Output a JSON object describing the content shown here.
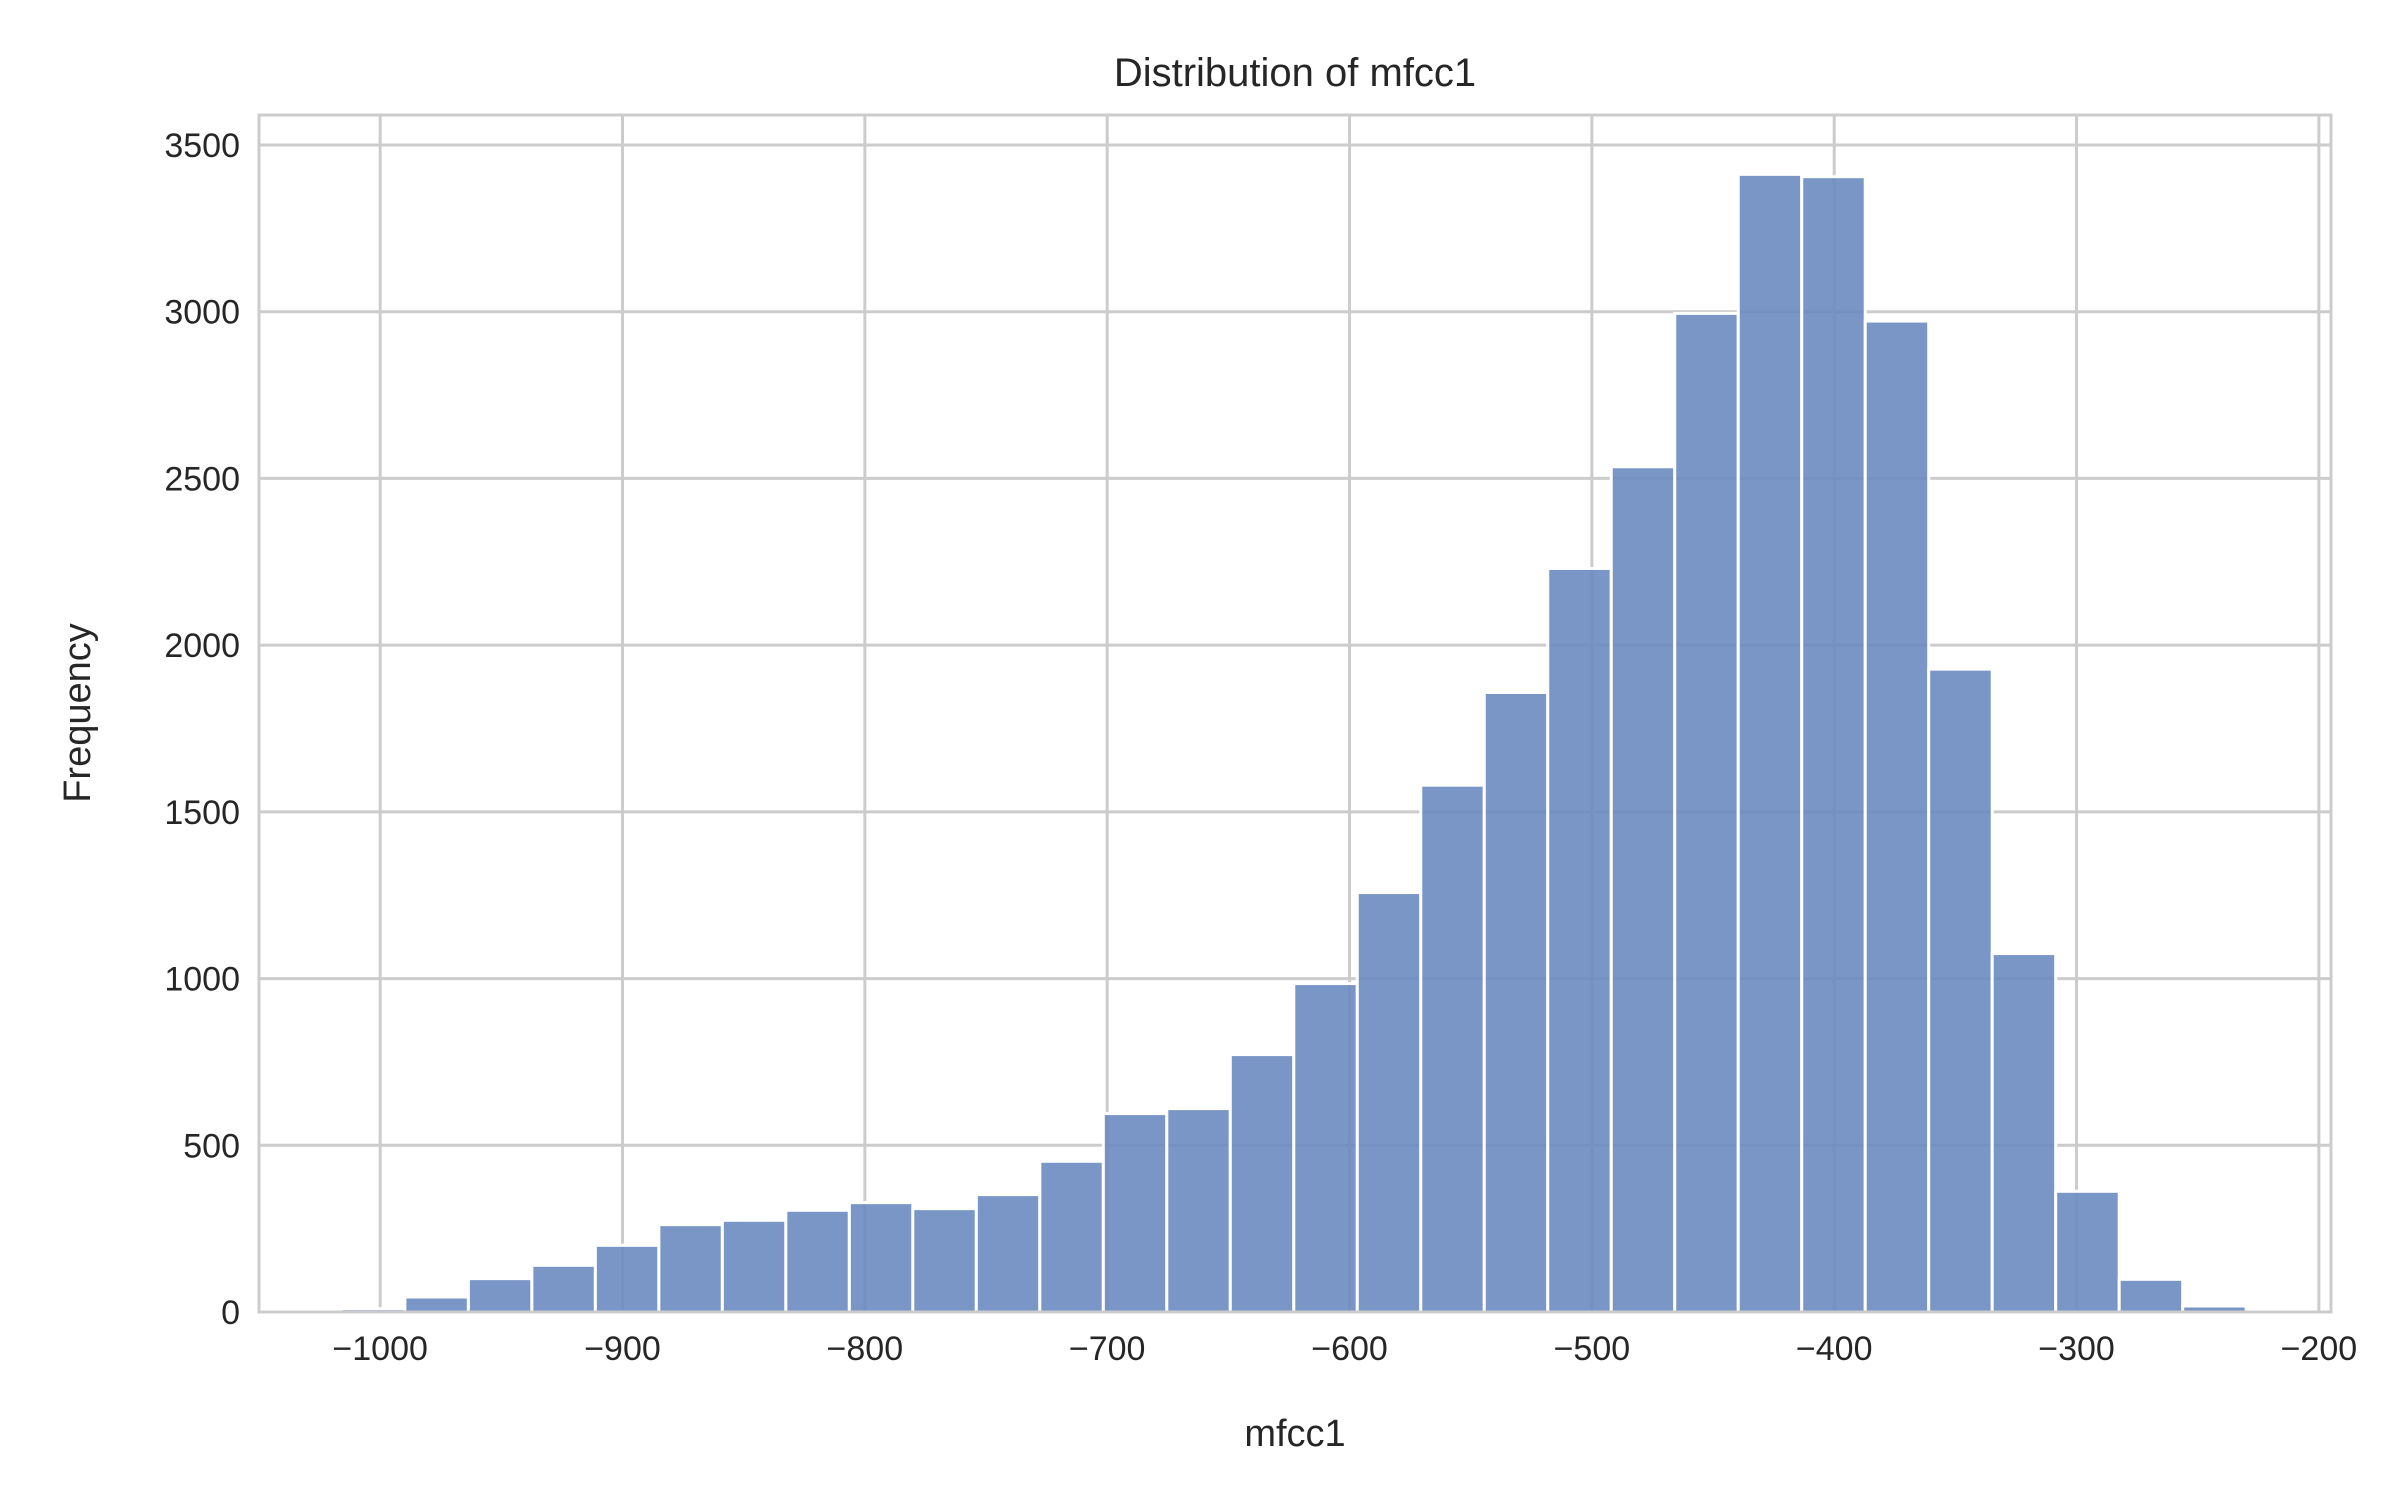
{
  "chart_data": {
    "type": "bar",
    "title": "Distribution of mfcc1",
    "xlabel": "mfcc1",
    "ylabel": "Frequency",
    "xlim": [
      -1050,
      -195
    ],
    "ylim": [
      0,
      3590
    ],
    "x_ticks": [
      -1000,
      -900,
      -800,
      -700,
      -600,
      -500,
      -400,
      -300,
      -200
    ],
    "x_tick_labels": [
      "−1000",
      "−900",
      "−800",
      "−700",
      "−600",
      "−500",
      "−400",
      "−300",
      "−200"
    ],
    "y_ticks": [
      0,
      500,
      1000,
      1500,
      2000,
      2500,
      3000,
      3500
    ],
    "y_tick_labels": [
      "0",
      "500",
      "1000",
      "1500",
      "2000",
      "2500",
      "3000",
      "3500"
    ],
    "grid": true,
    "bin_start": -1016,
    "bin_width": 26.2,
    "values": [
      10,
      45,
      100,
      140,
      200,
      262,
      275,
      305,
      328,
      310,
      352,
      452,
      595,
      610,
      772,
      985,
      1258,
      1580,
      1858,
      2230,
      2535,
      2995,
      3412,
      3405,
      2972,
      1928,
      1075,
      362,
      98,
      18
    ],
    "bar_color": "#6a8bc0"
  }
}
